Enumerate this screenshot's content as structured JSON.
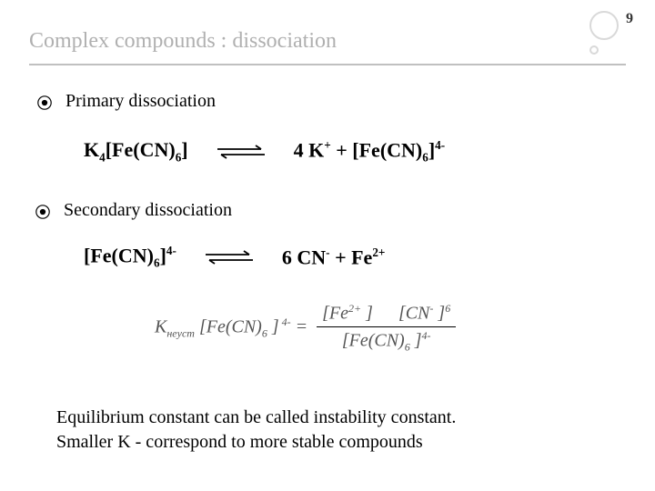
{
  "page_number": "9",
  "title": "Complex compounds : dissociation",
  "section1": {
    "label": "Primary dissociation",
    "lhs_html": "K<sub>4</sub>[Fe(CN)<sub>6</sub>]",
    "rhs_html": "4 K<sup>+</sup> + [Fe(CN)<sub>6</sub>]<sup>4-</sup>"
  },
  "section2": {
    "label": "Secondary dissociation",
    "lhs_html": "[Fe(CN)<sub>6</sub>]<sup>4-</sup>",
    "rhs_html": "6 CN<sup>-</sup> + Fe<sup>2+</sup>"
  },
  "formula": {
    "lhs_html": "K<sub>неуст</sub> [Fe(CN)<sub>6</sub> ]<sup> 4-</sup> =",
    "num_html": "[Fe<sup>2+</sup> ]<span class='gap1'></span>[CN<sup>-</sup> ]<sup>6</sup>",
    "den_html": "[Fe(CN)<sub>6</sub> ]<sup>4-</sup>"
  },
  "conclusion_line1": "Equilibrium constant can be called instability constant.",
  "conclusion_line2": "Smaller K -  correspond to more stable compounds",
  "colors": {
    "title_gray": "#b0b0b0",
    "decor_gray": "#d9d9d9",
    "line_gray": "#c0c0c0",
    "formula_gray": "#555555",
    "text": "#000000",
    "bg": "#ffffff"
  }
}
